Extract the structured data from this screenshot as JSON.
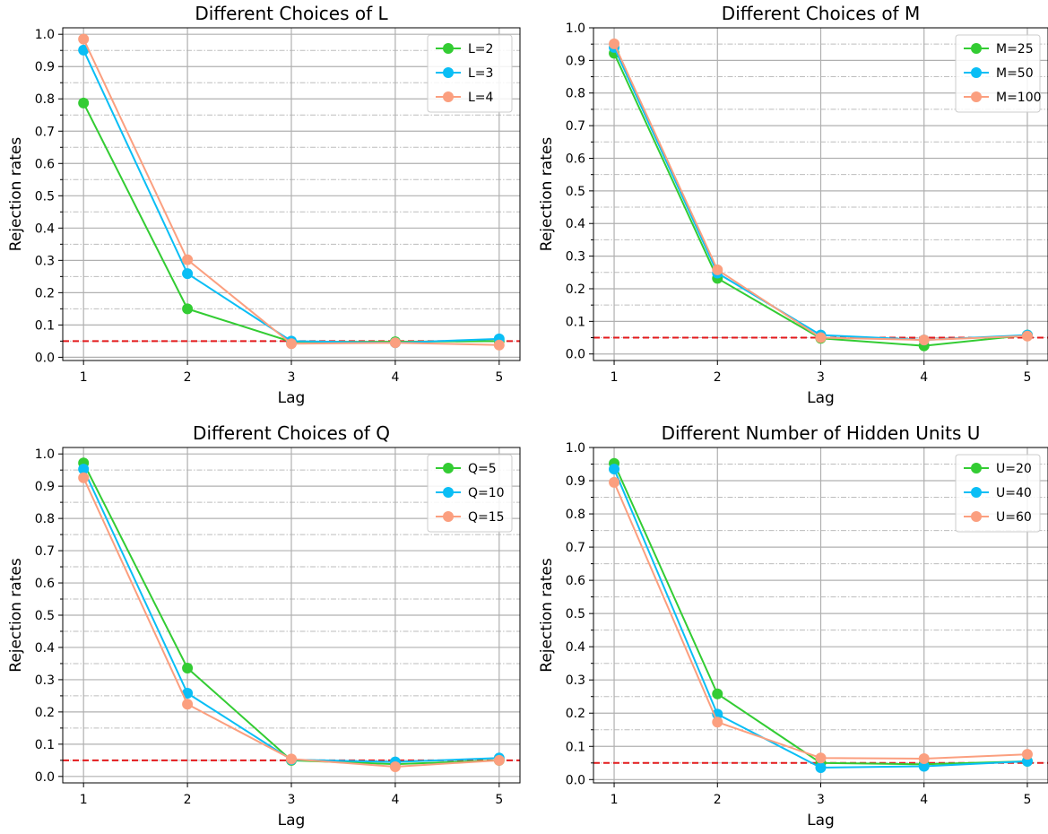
{
  "chart_data": [
    {
      "type": "line",
      "title": "Different Choices of L",
      "xlabel": "Lag",
      "ylabel": "Rejection rates",
      "x": [
        1,
        2,
        3,
        4,
        5
      ],
      "xlim": [
        0.8,
        5.2
      ],
      "ylim": [
        -0.01,
        1.02
      ],
      "yticks": [
        "0.0",
        "0.1",
        "0.2",
        "0.3",
        "0.4",
        "0.5",
        "0.6",
        "0.7",
        "0.8",
        "0.9",
        "1.0"
      ],
      "xticks": [
        "1",
        "2",
        "3",
        "4",
        "5"
      ],
      "reference_line": 0.05,
      "reference_color": "#e31a1c",
      "grid": true,
      "legend": "top-right",
      "series": [
        {
          "name": "L=2",
          "color": "#33cc33",
          "values": [
            0.787,
            0.15,
            0.048,
            0.048,
            0.05
          ]
        },
        {
          "name": "L=3",
          "color": "#0abef5",
          "values": [
            0.951,
            0.259,
            0.05,
            0.045,
            0.057
          ]
        },
        {
          "name": "L=4",
          "color": "#fb9f7f",
          "values": [
            0.985,
            0.302,
            0.042,
            0.045,
            0.038
          ]
        }
      ]
    },
    {
      "type": "line",
      "title": "Different Choices of M",
      "xlabel": "Lag",
      "ylabel": "Rejection rates",
      "x": [
        1,
        2,
        3,
        4,
        5
      ],
      "xlim": [
        0.8,
        5.2
      ],
      "ylim": [
        -0.02,
        1.0
      ],
      "yticks": [
        "0.0",
        "0.1",
        "0.2",
        "0.3",
        "0.4",
        "0.5",
        "0.6",
        "0.7",
        "0.8",
        "0.9",
        "1.0"
      ],
      "xticks": [
        "1",
        "2",
        "3",
        "4",
        "5"
      ],
      "reference_line": 0.05,
      "reference_color": "#e31a1c",
      "grid": true,
      "legend": "top-right",
      "series": [
        {
          "name": "M=25",
          "color": "#33cc33",
          "values": [
            0.922,
            0.232,
            0.048,
            0.025,
            0.058
          ]
        },
        {
          "name": "M=50",
          "color": "#0abef5",
          "values": [
            0.94,
            0.248,
            0.058,
            0.043,
            0.058
          ]
        },
        {
          "name": "M=100",
          "color": "#fb9f7f",
          "values": [
            0.951,
            0.258,
            0.05,
            0.043,
            0.055
          ]
        }
      ]
    },
    {
      "type": "line",
      "title": "Different Choices of Q",
      "xlabel": "Lag",
      "ylabel": "Rejection rates",
      "x": [
        1,
        2,
        3,
        4,
        5
      ],
      "xlim": [
        0.8,
        5.2
      ],
      "ylim": [
        -0.02,
        1.02
      ],
      "yticks": [
        "0.0",
        "0.1",
        "0.2",
        "0.3",
        "0.4",
        "0.5",
        "0.6",
        "0.7",
        "0.8",
        "0.9",
        "1.0"
      ],
      "xticks": [
        "1",
        "2",
        "3",
        "4",
        "5"
      ],
      "reference_line": 0.05,
      "reference_color": "#e31a1c",
      "grid": true,
      "legend": "top-right",
      "series": [
        {
          "name": "Q=5",
          "color": "#33cc33",
          "values": [
            0.972,
            0.336,
            0.05,
            0.038,
            0.05
          ]
        },
        {
          "name": "Q=10",
          "color": "#0abef5",
          "values": [
            0.953,
            0.258,
            0.052,
            0.045,
            0.057
          ]
        },
        {
          "name": "Q=15",
          "color": "#fb9f7f",
          "values": [
            0.926,
            0.224,
            0.054,
            0.03,
            0.05
          ]
        }
      ]
    },
    {
      "type": "line",
      "title": "Different Number of Hidden Units U",
      "xlabel": "Lag",
      "ylabel": "Rejection rates",
      "x": [
        1,
        2,
        3,
        4,
        5
      ],
      "xlim": [
        0.8,
        5.2
      ],
      "ylim": [
        -0.01,
        1.0
      ],
      "yticks": [
        "0.0",
        "0.1",
        "0.2",
        "0.3",
        "0.4",
        "0.5",
        "0.6",
        "0.7",
        "0.8",
        "0.9",
        "1.0"
      ],
      "xticks": [
        "1",
        "2",
        "3",
        "4",
        "5"
      ],
      "reference_line": 0.05,
      "reference_color": "#e31a1c",
      "grid": true,
      "legend": "top-right",
      "series": [
        {
          "name": "U=20",
          "color": "#33cc33",
          "values": [
            0.952,
            0.258,
            0.05,
            0.046,
            0.055
          ]
        },
        {
          "name": "U=40",
          "color": "#0abef5",
          "values": [
            0.935,
            0.197,
            0.036,
            0.04,
            0.055
          ]
        },
        {
          "name": "U=60",
          "color": "#fb9f7f",
          "values": [
            0.895,
            0.173,
            0.065,
            0.063,
            0.076
          ]
        }
      ]
    }
  ]
}
